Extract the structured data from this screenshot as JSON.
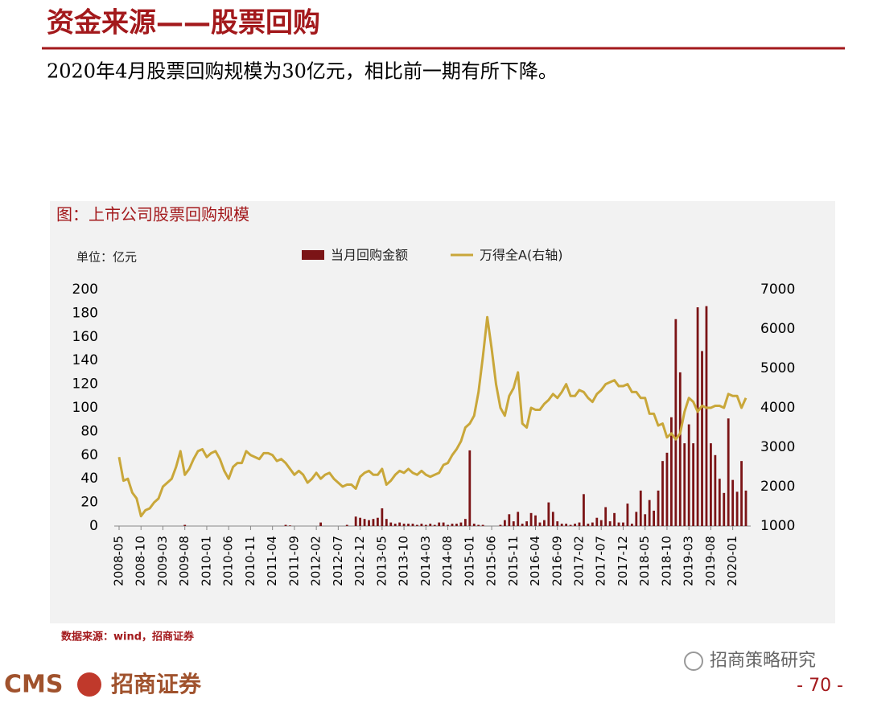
{
  "header": {
    "title": "资金来源——股票回购",
    "subtitle": "2020年4月股票回购规模为30亿元，相比前一期有所下降。"
  },
  "chart_data": {
    "type": "combo",
    "title": "图：上市公司股票回购规模",
    "unit": "单位：亿元",
    "categories": [
      "2008-05",
      null,
      null,
      null,
      null,
      "2008-10",
      null,
      null,
      null,
      null,
      "2009-03",
      null,
      null,
      null,
      null,
      "2009-08",
      null,
      null,
      null,
      null,
      "2010-01",
      null,
      null,
      null,
      null,
      "2010-06",
      null,
      null,
      null,
      null,
      "2010-11",
      null,
      null,
      null,
      null,
      "2011-04",
      null,
      null,
      null,
      null,
      "2011-09",
      null,
      null,
      null,
      null,
      "2012-02",
      null,
      null,
      null,
      null,
      "2012-07",
      null,
      null,
      null,
      null,
      "2012-12",
      null,
      null,
      null,
      null,
      "2013-05",
      null,
      null,
      null,
      null,
      "2013-10",
      null,
      null,
      null,
      null,
      "2014-03",
      null,
      null,
      null,
      null,
      "2014-08",
      null,
      null,
      null,
      null,
      "2015-01",
      null,
      null,
      null,
      null,
      "2015-06",
      null,
      null,
      null,
      null,
      "2015-11",
      null,
      null,
      null,
      null,
      "2016-04",
      null,
      null,
      null,
      null,
      "2016-09",
      null,
      null,
      null,
      null,
      "2017-02",
      null,
      null,
      null,
      null,
      "2017-07",
      null,
      null,
      null,
      null,
      "2017-12",
      null,
      null,
      null,
      null,
      "2018-05",
      null,
      null,
      null,
      null,
      "2018-10",
      null,
      null,
      null,
      null,
      "2019-03",
      null,
      null,
      null,
      null,
      "2019-08",
      null,
      null,
      null,
      null,
      "2020-01",
      null,
      null,
      null
    ],
    "series": [
      {
        "name": "当月回购金额",
        "type": "bar",
        "color": "#7b1416",
        "values": [
          0,
          0,
          0,
          0,
          0,
          0,
          0,
          0,
          0,
          0,
          0,
          0,
          0,
          0,
          0,
          1,
          0,
          0,
          0,
          0,
          0,
          0,
          0,
          0,
          0,
          0,
          0,
          0,
          0,
          0,
          0,
          0,
          0,
          0,
          0,
          0,
          0,
          0,
          1,
          0.5,
          0,
          0,
          0,
          0,
          0,
          0,
          3,
          0,
          0,
          0,
          0,
          0,
          1,
          0,
          8,
          7,
          6,
          5,
          6,
          7,
          15,
          6,
          3,
          2,
          3,
          2,
          2,
          2,
          1,
          2,
          1,
          2,
          1,
          3,
          3,
          1,
          2,
          2,
          3,
          6,
          64,
          2,
          1,
          1,
          0,
          0,
          0,
          1,
          5,
          10,
          4,
          12,
          2,
          4,
          11,
          9,
          3,
          5,
          20,
          12,
          4,
          2,
          2,
          1,
          2,
          3,
          27,
          2,
          3,
          7,
          5,
          16,
          4,
          11,
          3,
          3,
          19,
          2,
          12,
          30,
          10,
          22,
          13,
          30,
          55,
          62,
          92,
          175,
          130,
          70,
          86,
          70,
          185,
          148,
          186,
          70,
          60,
          40,
          28,
          91,
          39,
          29,
          55,
          30
        ]
      },
      {
        "name": "万得全A(右轴)",
        "type": "line",
        "axis": "y2",
        "color": "#c9a73a",
        "values": [
          2750,
          2150,
          2200,
          1850,
          1700,
          1250,
          1400,
          1450,
          1600,
          1700,
          2000,
          2100,
          2200,
          2500,
          2900,
          2300,
          2450,
          2700,
          2900,
          2950,
          2750,
          2850,
          2900,
          2700,
          2400,
          2200,
          2500,
          2600,
          2600,
          2900,
          2800,
          2750,
          2700,
          2850,
          2850,
          2800,
          2650,
          2700,
          2600,
          2450,
          2300,
          2400,
          2300,
          2100,
          2200,
          2350,
          2200,
          2300,
          2350,
          2200,
          2100,
          2000,
          2050,
          2050,
          1950,
          2250,
          2350,
          2400,
          2300,
          2300,
          2450,
          2050,
          2150,
          2300,
          2400,
          2350,
          2450,
          2350,
          2300,
          2400,
          2300,
          2250,
          2300,
          2350,
          2550,
          2600,
          2800,
          2950,
          3150,
          3500,
          3600,
          3800,
          4400,
          5300,
          6300,
          5500,
          4600,
          4000,
          3800,
          4300,
          4500,
          4900,
          3600,
          3500,
          4000,
          3950,
          3950,
          4100,
          4200,
          4350,
          4250,
          4400,
          4600,
          4300,
          4300,
          4450,
          4400,
          4250,
          4150,
          4350,
          4450,
          4600,
          4650,
          4700,
          4550,
          4550,
          4600,
          4400,
          4400,
          4250,
          4250,
          3850,
          3850,
          3550,
          3600,
          3250,
          3350,
          3200,
          3350,
          3900,
          4250,
          4150,
          3900,
          4050,
          4000,
          4000,
          4050,
          4050,
          4000,
          4350,
          4300,
          4300,
          4000,
          4250
        ]
      }
    ],
    "ylim": [
      0,
      200
    ],
    "yticks": [
      0,
      20,
      40,
      60,
      80,
      100,
      120,
      140,
      160,
      180,
      200
    ],
    "y2lim": [
      1000,
      7000
    ],
    "y2ticks": [
      1000,
      2000,
      3000,
      4000,
      5000,
      6000,
      7000
    ],
    "source": "数据来源：wind，招商证券"
  },
  "footer": {
    "logo": "CMS",
    "brand": "招商证券",
    "wechat": "招商策略研究",
    "page": "- 70 -"
  }
}
